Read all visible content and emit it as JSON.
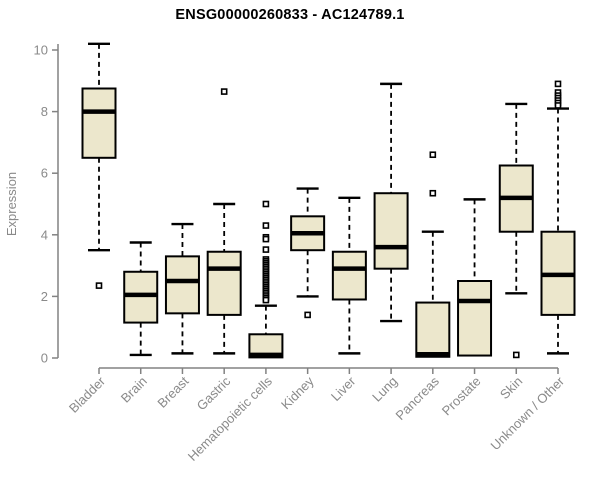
{
  "chart_data": {
    "type": "boxplot",
    "title": "ENSG00000260833 - AC124789.1",
    "ylabel": "Expression",
    "xlabel": "",
    "ylim": [
      0,
      10
    ],
    "yticks": [
      0,
      2,
      4,
      6,
      8,
      10
    ],
    "grid": false,
    "legend": "none",
    "categories": [
      "Bladder",
      "Brain",
      "Breast",
      "Gastric",
      "Hematopoietic cells",
      "Kidney",
      "Liver",
      "Lung",
      "Pancreas",
      "Prostate",
      "Skin",
      "Unknown / Other"
    ],
    "series": [
      {
        "category": "Bladder",
        "whisker_low": 3.5,
        "q1": 6.5,
        "median": 8.0,
        "q3": 8.75,
        "whisker_high": 10.2,
        "outliers": [
          2.35
        ]
      },
      {
        "category": "Brain",
        "whisker_low": 0.1,
        "q1": 1.15,
        "median": 2.05,
        "q3": 2.8,
        "whisker_high": 3.75,
        "outliers": []
      },
      {
        "category": "Breast",
        "whisker_low": 0.15,
        "q1": 1.45,
        "median": 2.5,
        "q3": 3.3,
        "whisker_high": 4.35,
        "outliers": []
      },
      {
        "category": "Gastric",
        "whisker_low": 0.15,
        "q1": 1.4,
        "median": 2.9,
        "q3": 3.45,
        "whisker_high": 5.0,
        "outliers": [
          8.65
        ]
      },
      {
        "category": "Hematopoietic cells",
        "whisker_low": 0.0,
        "q1": 0.02,
        "median": 0.1,
        "q3": 0.77,
        "whisker_high": 1.7,
        "outliers": [
          5.0,
          4.3,
          3.92,
          3.86,
          3.52,
          3.2,
          3.14,
          3.08,
          3.02,
          2.96,
          2.9,
          2.84,
          2.78,
          2.72,
          2.66,
          2.6,
          2.54,
          2.48,
          2.42,
          2.36,
          2.3,
          2.24,
          2.18,
          2.12,
          2.06,
          2.0,
          1.94,
          1.88
        ]
      },
      {
        "category": "Kidney",
        "whisker_low": 2.0,
        "q1": 3.5,
        "median": 4.05,
        "q3": 4.6,
        "whisker_high": 5.5,
        "outliers": [
          1.4
        ]
      },
      {
        "category": "Liver",
        "whisker_low": 0.15,
        "q1": 1.9,
        "median": 2.9,
        "q3": 3.45,
        "whisker_high": 5.2,
        "outliers": []
      },
      {
        "category": "Lung",
        "whisker_low": 1.2,
        "q1": 2.9,
        "median": 3.6,
        "q3": 5.35,
        "whisker_high": 8.9,
        "outliers": []
      },
      {
        "category": "Pancreas",
        "whisker_low": 0.02,
        "q1": 0.04,
        "median": 0.12,
        "q3": 1.8,
        "whisker_high": 4.1,
        "outliers": [
          6.6,
          5.35
        ]
      },
      {
        "category": "Prostate",
        "whisker_low": 0.05,
        "q1": 0.08,
        "median": 1.85,
        "q3": 2.5,
        "whisker_high": 5.15,
        "outliers": []
      },
      {
        "category": "Skin",
        "whisker_low": 2.1,
        "q1": 4.1,
        "median": 5.2,
        "q3": 6.25,
        "whisker_high": 8.25,
        "outliers": [
          0.1
        ]
      },
      {
        "category": "Unknown / Other",
        "whisker_low": 0.15,
        "q1": 1.4,
        "median": 2.7,
        "q3": 4.1,
        "whisker_high": 8.1,
        "outliers": [
          8.9,
          8.62,
          8.52,
          8.44,
          8.36,
          8.28,
          8.2
        ]
      }
    ],
    "colors": {
      "box_fill": "#ECE7CC",
      "box_border": "#000000",
      "median": "#000000",
      "whisker": "#000000",
      "outlier": "#000000",
      "axis": "#828282",
      "tick_label": "#8a8a8a",
      "title": "#000000",
      "background": "#ffffff"
    }
  }
}
